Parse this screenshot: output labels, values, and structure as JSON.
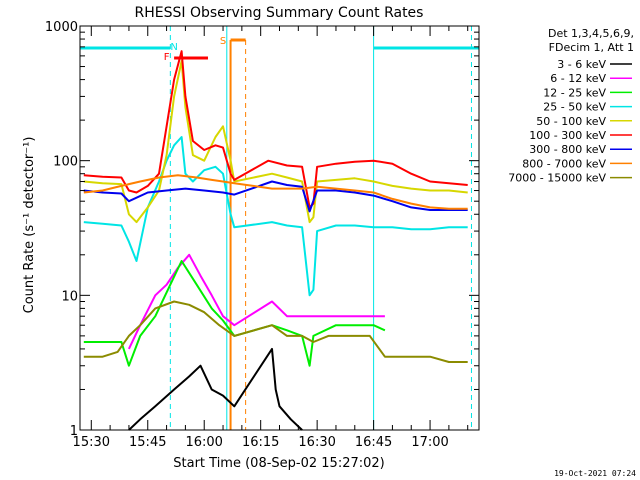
{
  "chart_data": {
    "type": "line",
    "title": "RHESSI Observing Summary Count Rates",
    "xlabel": "Start Time (08-Sep-02 15:27:02)",
    "ylabel": "Count Rate (s⁻¹ detector⁻¹)",
    "y_scale": "log",
    "ylim": [
      1,
      1000
    ],
    "xlim": [
      "15:27",
      "17:13"
    ],
    "x_ticks": [
      "15:30",
      "15:45",
      "16:00",
      "16:15",
      "16:30",
      "16:45",
      "17:00"
    ],
    "y_ticks": [
      "1",
      "10",
      "100",
      "1000"
    ],
    "legend_position": "top-right",
    "legend_header": [
      "Det 1,3,4,5,6,9,",
      "FDecim 1, Att 1"
    ],
    "timestamp": "19-Oct-2021 07:24",
    "annotations": [
      {
        "label": "F",
        "color": "#ff0000"
      },
      {
        "label": "N",
        "color": "#00e5e5"
      },
      {
        "label": "S",
        "color": "#ff8000"
      }
    ],
    "series": [
      {
        "name": "3 - 6 keV",
        "color": "#000000",
        "points": [
          [
            "15:40",
            1
          ],
          [
            "15:43",
            1.2
          ],
          [
            "15:47",
            1.5
          ],
          [
            "15:52",
            2
          ],
          [
            "15:56",
            2.5
          ],
          [
            "15:59",
            3
          ],
          [
            "16:02",
            2
          ],
          [
            "16:05",
            1.8
          ],
          [
            "16:08",
            1.5
          ],
          [
            "16:18",
            4
          ],
          [
            "16:19",
            2
          ],
          [
            "16:20",
            1.5
          ],
          [
            "16:23",
            1.2
          ],
          [
            "16:26",
            1
          ]
        ]
      },
      {
        "name": "6 - 12 keV",
        "color": "#ff00ff",
        "points": [
          [
            "15:40",
            4
          ],
          [
            "15:43",
            6
          ],
          [
            "15:47",
            10
          ],
          [
            "15:50",
            12
          ],
          [
            "15:53",
            16
          ],
          [
            "15:56",
            20
          ],
          [
            "15:59",
            14
          ],
          [
            "16:02",
            10
          ],
          [
            "16:05",
            7
          ],
          [
            "16:08",
            6
          ],
          [
            "16:18",
            9
          ],
          [
            "16:22",
            7
          ],
          [
            "16:26",
            7
          ],
          [
            "16:30",
            7
          ],
          [
            "16:35",
            7
          ],
          [
            "16:40",
            7
          ],
          [
            "16:44",
            7
          ],
          [
            "16:48",
            7
          ]
        ]
      },
      {
        "name": "12 - 25 keV",
        "color": "#00ee00",
        "points": [
          [
            "15:28",
            4.5
          ],
          [
            "15:33",
            4.5
          ],
          [
            "15:38",
            4.5
          ],
          [
            "15:40",
            3
          ],
          [
            "15:43",
            5
          ],
          [
            "15:47",
            7
          ],
          [
            "15:51",
            12
          ],
          [
            "15:54",
            18
          ],
          [
            "15:58",
            12
          ],
          [
            "16:02",
            8
          ],
          [
            "16:05",
            6.5
          ],
          [
            "16:08",
            5
          ],
          [
            "16:18",
            6
          ],
          [
            "16:22",
            5.5
          ],
          [
            "16:26",
            5
          ],
          [
            "16:28",
            3
          ],
          [
            "16:29",
            5
          ],
          [
            "16:35",
            6
          ],
          [
            "16:40",
            6
          ],
          [
            "16:45",
            6
          ],
          [
            "16:48",
            5.5
          ]
        ]
      },
      {
        "name": "25 - 50 keV",
        "color": "#00e5e5",
        "points": [
          [
            "15:28",
            35
          ],
          [
            "15:33",
            34
          ],
          [
            "15:38",
            33
          ],
          [
            "15:40",
            25
          ],
          [
            "15:42",
            18
          ],
          [
            "15:45",
            45
          ],
          [
            "15:48",
            70
          ],
          [
            "15:50",
            100
          ],
          [
            "15:52",
            130
          ],
          [
            "15:54",
            150
          ],
          [
            "15:55",
            80
          ],
          [
            "15:57",
            70
          ],
          [
            "16:00",
            85
          ],
          [
            "16:03",
            90
          ],
          [
            "16:05",
            80
          ],
          [
            "16:07",
            40
          ],
          [
            "16:08",
            32
          ],
          [
            "16:18",
            35
          ],
          [
            "16:22",
            33
          ],
          [
            "16:26",
            32
          ],
          [
            "16:28",
            10
          ],
          [
            "16:29",
            11
          ],
          [
            "16:30",
            30
          ],
          [
            "16:35",
            33
          ],
          [
            "16:40",
            33
          ],
          [
            "16:45",
            32
          ],
          [
            "16:50",
            32
          ],
          [
            "16:55",
            31
          ],
          [
            "17:00",
            31
          ],
          [
            "17:05",
            32
          ],
          [
            "17:10",
            32
          ]
        ]
      },
      {
        "name": "50 - 100 keV",
        "color": "#d7d700",
        "points": [
          [
            "15:28",
            70
          ],
          [
            "15:33",
            68
          ],
          [
            "15:38",
            67
          ],
          [
            "15:40",
            40
          ],
          [
            "15:42",
            35
          ],
          [
            "15:45",
            45
          ],
          [
            "15:48",
            60
          ],
          [
            "15:50",
            110
          ],
          [
            "15:52",
            300
          ],
          [
            "15:54",
            550
          ],
          [
            "15:55",
            250
          ],
          [
            "15:57",
            110
          ],
          [
            "16:00",
            100
          ],
          [
            "16:03",
            150
          ],
          [
            "16:05",
            180
          ],
          [
            "16:07",
            100
          ],
          [
            "16:08",
            70
          ],
          [
            "16:18",
            80
          ],
          [
            "16:22",
            75
          ],
          [
            "16:26",
            70
          ],
          [
            "16:28",
            35
          ],
          [
            "16:29",
            38
          ],
          [
            "16:30",
            70
          ],
          [
            "16:35",
            72
          ],
          [
            "16:40",
            74
          ],
          [
            "16:45",
            70
          ],
          [
            "16:50",
            65
          ],
          [
            "16:55",
            62
          ],
          [
            "17:00",
            60
          ],
          [
            "17:05",
            60
          ],
          [
            "17:10",
            58
          ]
        ]
      },
      {
        "name": "100 - 300 keV",
        "color": "#ff0000",
        "points": [
          [
            "15:28",
            78
          ],
          [
            "15:33",
            76
          ],
          [
            "15:38",
            75
          ],
          [
            "15:40",
            60
          ],
          [
            "15:42",
            58
          ],
          [
            "15:45",
            65
          ],
          [
            "15:48",
            80
          ],
          [
            "15:50",
            180
          ],
          [
            "15:52",
            400
          ],
          [
            "15:54",
            650
          ],
          [
            "15:55",
            300
          ],
          [
            "15:57",
            140
          ],
          [
            "16:00",
            120
          ],
          [
            "16:03",
            130
          ],
          [
            "16:05",
            125
          ],
          [
            "16:07",
            80
          ],
          [
            "16:08",
            72
          ],
          [
            "16:17",
            100
          ],
          [
            "16:22",
            92
          ],
          [
            "16:26",
            90
          ],
          [
            "16:28",
            45
          ],
          [
            "16:29",
            48
          ],
          [
            "16:30",
            90
          ],
          [
            "16:35",
            95
          ],
          [
            "16:40",
            98
          ],
          [
            "16:45",
            100
          ],
          [
            "16:50",
            95
          ],
          [
            "16:55",
            80
          ],
          [
            "17:00",
            70
          ],
          [
            "17:05",
            68
          ],
          [
            "17:10",
            66
          ]
        ]
      },
      {
        "name": "300 - 800 keV",
        "color": "#0000ee",
        "points": [
          [
            "15:28",
            60
          ],
          [
            "15:33",
            58
          ],
          [
            "15:38",
            57
          ],
          [
            "15:40",
            50
          ],
          [
            "15:45",
            58
          ],
          [
            "15:50",
            60
          ],
          [
            "15:55",
            62
          ],
          [
            "16:00",
            60
          ],
          [
            "16:05",
            58
          ],
          [
            "16:08",
            56
          ],
          [
            "16:18",
            70
          ],
          [
            "16:22",
            66
          ],
          [
            "16:26",
            64
          ],
          [
            "16:28",
            42
          ],
          [
            "16:30",
            60
          ],
          [
            "16:35",
            60
          ],
          [
            "16:40",
            58
          ],
          [
            "16:45",
            55
          ],
          [
            "16:50",
            50
          ],
          [
            "16:55",
            45
          ],
          [
            "17:00",
            43
          ],
          [
            "17:05",
            43
          ],
          [
            "17:10",
            43
          ]
        ]
      },
      {
        "name": "800 - 7000 keV",
        "color": "#ff8000",
        "points": [
          [
            "15:28",
            58
          ],
          [
            "15:33",
            60
          ],
          [
            "15:38",
            65
          ],
          [
            "15:43",
            70
          ],
          [
            "15:48",
            75
          ],
          [
            "15:53",
            78
          ],
          [
            "15:58",
            75
          ],
          [
            "16:02",
            72
          ],
          [
            "16:05",
            70
          ],
          [
            "16:08",
            68
          ],
          [
            "16:18",
            62
          ],
          [
            "16:22",
            62
          ],
          [
            "16:26",
            62
          ],
          [
            "16:30",
            64
          ],
          [
            "16:35",
            62
          ],
          [
            "16:40",
            60
          ],
          [
            "16:45",
            58
          ],
          [
            "16:50",
            52
          ],
          [
            "16:55",
            48
          ],
          [
            "17:00",
            45
          ],
          [
            "17:05",
            44
          ],
          [
            "17:10",
            44
          ]
        ]
      },
      {
        "name": "7000 - 15000 keV",
        "color": "#8b8b00",
        "points": [
          [
            "15:28",
            3.5
          ],
          [
            "15:33",
            3.5
          ],
          [
            "15:37",
            3.8
          ],
          [
            "15:40",
            5
          ],
          [
            "15:43",
            6
          ],
          [
            "15:47",
            8
          ],
          [
            "15:52",
            9
          ],
          [
            "15:56",
            8.5
          ],
          [
            "16:00",
            7.5
          ],
          [
            "16:04",
            6
          ],
          [
            "16:08",
            5
          ],
          [
            "16:18",
            6
          ],
          [
            "16:22",
            5
          ],
          [
            "16:26",
            5
          ],
          [
            "16:29",
            4.5
          ],
          [
            "16:33",
            5
          ],
          [
            "16:38",
            5
          ],
          [
            "16:44",
            5
          ],
          [
            "16:48",
            3.5
          ],
          [
            "16:55",
            3.5
          ],
          [
            "17:00",
            3.5
          ],
          [
            "17:05",
            3.2
          ],
          [
            "17:10",
            3.2
          ]
        ]
      }
    ]
  }
}
